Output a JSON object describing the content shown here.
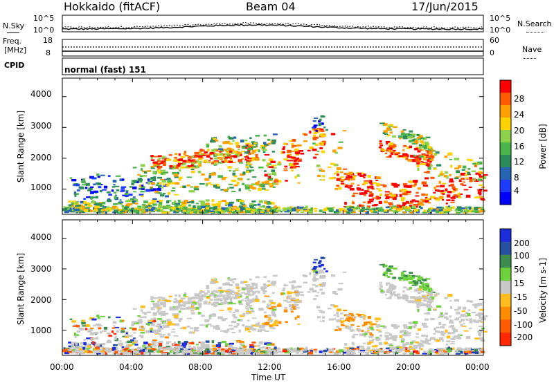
{
  "header": {
    "radar": "Hokkaido (fitACF)",
    "beam": "Beam 04",
    "date": "17/Jun/2015"
  },
  "noise_panel": {
    "left_label": "N.Sky",
    "right_label": "N.Search",
    "left_ticks": [
      "10^5",
      "10^0"
    ],
    "right_ticks": [
      "10^5",
      "10^0"
    ]
  },
  "freq_panel": {
    "left_label_1": "Freq.",
    "left_label_2": "[MHz]",
    "right_label": "Nave",
    "left_ticks": [
      "18",
      "8"
    ],
    "right_ticks": [
      "60",
      "0"
    ]
  },
  "cpid": {
    "label": "CPID",
    "value": "normal (fast) 151"
  },
  "x_axis": {
    "ticks": [
      "00:00",
      "04:00",
      "08:00",
      "12:00",
      "16:00",
      "20:00",
      "00:00"
    ],
    "label": "Time UT"
  },
  "chart_data": [
    {
      "type": "heatmap",
      "title": "Power",
      "ylabel": "Slant Range [km]",
      "yticks": [
        "4000",
        "3000",
        "2000",
        "1000"
      ],
      "ylim": [
        180,
        4600
      ],
      "xlim_hours": [
        0,
        24
      ],
      "colorbar": {
        "label": "Power [dB]",
        "tick_labels": [
          "28",
          "24",
          "20",
          "16",
          "12",
          "8",
          "4"
        ],
        "colors": [
          "#ff0000",
          "#ff5a00",
          "#ffa000",
          "#ffd200",
          "#8cd24b",
          "#4bb44b",
          "#2d8c5a",
          "#2864b4",
          "#1e3cff",
          "#0000ff"
        ]
      }
    },
    {
      "type": "heatmap",
      "title": "Velocity",
      "ylabel": "Slant Range [km]",
      "yticks": [
        "4000",
        "3000",
        "2000",
        "1000"
      ],
      "ylim": [
        180,
        4600
      ],
      "xlim_hours": [
        0,
        24
      ],
      "colorbar": {
        "label": "Velocity [m s-1]",
        "tick_labels": [
          "200",
          "100",
          "50",
          "15",
          "-15",
          "-50",
          "-100",
          "-200"
        ],
        "colors": [
          "#1e2ddc",
          "#2850a0",
          "#3c8c50",
          "#6ed23c",
          "#c8c8c8",
          "#ffbe1e",
          "#ff8c00",
          "#ff5a00",
          "#ff2800"
        ]
      }
    }
  ]
}
